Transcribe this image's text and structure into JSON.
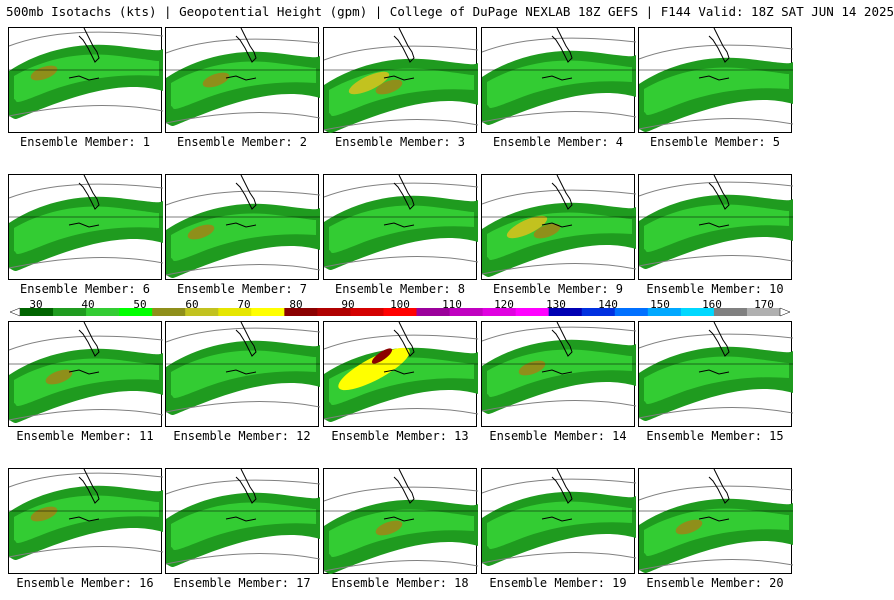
{
  "header": {
    "title": "500mb Isotachs (kts) | Geopotential Height (gpm) | College of DuPage NEXLAB   18Z GEFS | F144 Valid: 18Z SAT JUN 14 2025"
  },
  "panels": [
    {
      "label": "Ensemble Member: 1",
      "intensity": 2
    },
    {
      "label": "Ensemble Member: 2",
      "intensity": 2
    },
    {
      "label": "Ensemble Member: 3",
      "intensity": 3
    },
    {
      "label": "Ensemble Member: 4",
      "intensity": 1
    },
    {
      "label": "Ensemble Member: 5",
      "intensity": 1
    },
    {
      "label": "Ensemble Member: 6",
      "intensity": 1
    },
    {
      "label": "Ensemble Member: 7",
      "intensity": 2
    },
    {
      "label": "Ensemble Member: 8",
      "intensity": 1
    },
    {
      "label": "Ensemble Member: 9",
      "intensity": 3
    },
    {
      "label": "Ensemble Member: 10",
      "intensity": 1
    },
    {
      "label": "Ensemble Member: 11",
      "intensity": 2
    },
    {
      "label": "Ensemble Member: 12",
      "intensity": 1
    },
    {
      "label": "Ensemble Member: 13",
      "intensity": 5
    },
    {
      "label": "Ensemble Member: 14",
      "intensity": 2
    },
    {
      "label": "Ensemble Member: 15",
      "intensity": 1
    },
    {
      "label": "Ensemble Member: 16",
      "intensity": 2
    },
    {
      "label": "Ensemble Member: 17",
      "intensity": 1
    },
    {
      "label": "Ensemble Member: 18",
      "intensity": 2
    },
    {
      "label": "Ensemble Member: 19",
      "intensity": 1
    },
    {
      "label": "Ensemble Member: 20",
      "intensity": 2
    }
  ],
  "colorbar": {
    "ticks": [
      "30",
      "40",
      "50",
      "60",
      "70",
      "80",
      "90",
      "100",
      "110",
      "120",
      "130",
      "140",
      "150",
      "160",
      "170"
    ],
    "colors": [
      "#006400",
      "#1f9b1f",
      "#33cc33",
      "#00ff00",
      "#8f8f1a",
      "#c2c21f",
      "#e6e600",
      "#ffff00",
      "#8b0000",
      "#b00000",
      "#d40000",
      "#ff0000",
      "#9b009b",
      "#c000c0",
      "#e000e0",
      "#ff00ff",
      "#0000b4",
      "#0030e0",
      "#0070ff",
      "#00a8ff",
      "#00d8ff",
      "#808080",
      "#b0b0b0"
    ]
  }
}
